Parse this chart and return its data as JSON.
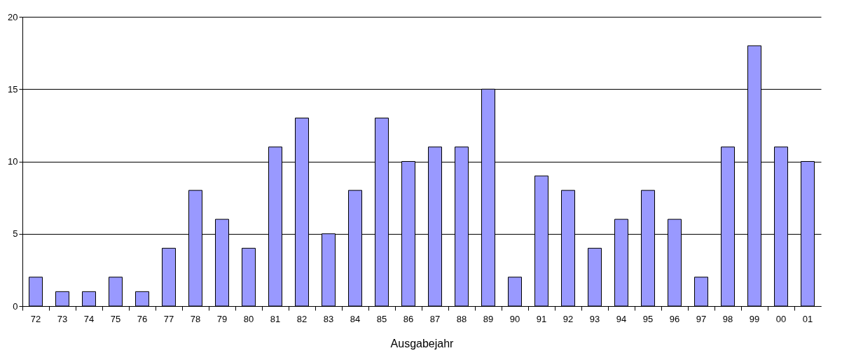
{
  "chart_data": {
    "type": "bar",
    "xlabel": "Ausgabejahr",
    "categories": [
      "72",
      "73",
      "74",
      "75",
      "76",
      "77",
      "78",
      "79",
      "80",
      "81",
      "82",
      "83",
      "84",
      "85",
      "86",
      "87",
      "88",
      "89",
      "90",
      "91",
      "92",
      "93",
      "94",
      "95",
      "96",
      "97",
      "98",
      "99",
      "00",
      "01"
    ],
    "values": [
      2,
      1,
      1,
      2,
      1,
      4,
      8,
      6,
      4,
      11,
      13,
      5,
      8,
      13,
      10,
      11,
      11,
      15,
      2,
      9,
      8,
      4,
      6,
      8,
      6,
      2,
      11,
      18,
      11,
      10
    ],
    "color": "#9999ff",
    "ylim": [
      0,
      20
    ],
    "yticks": [
      0,
      5,
      10,
      15,
      20
    ],
    "grid": "y"
  }
}
